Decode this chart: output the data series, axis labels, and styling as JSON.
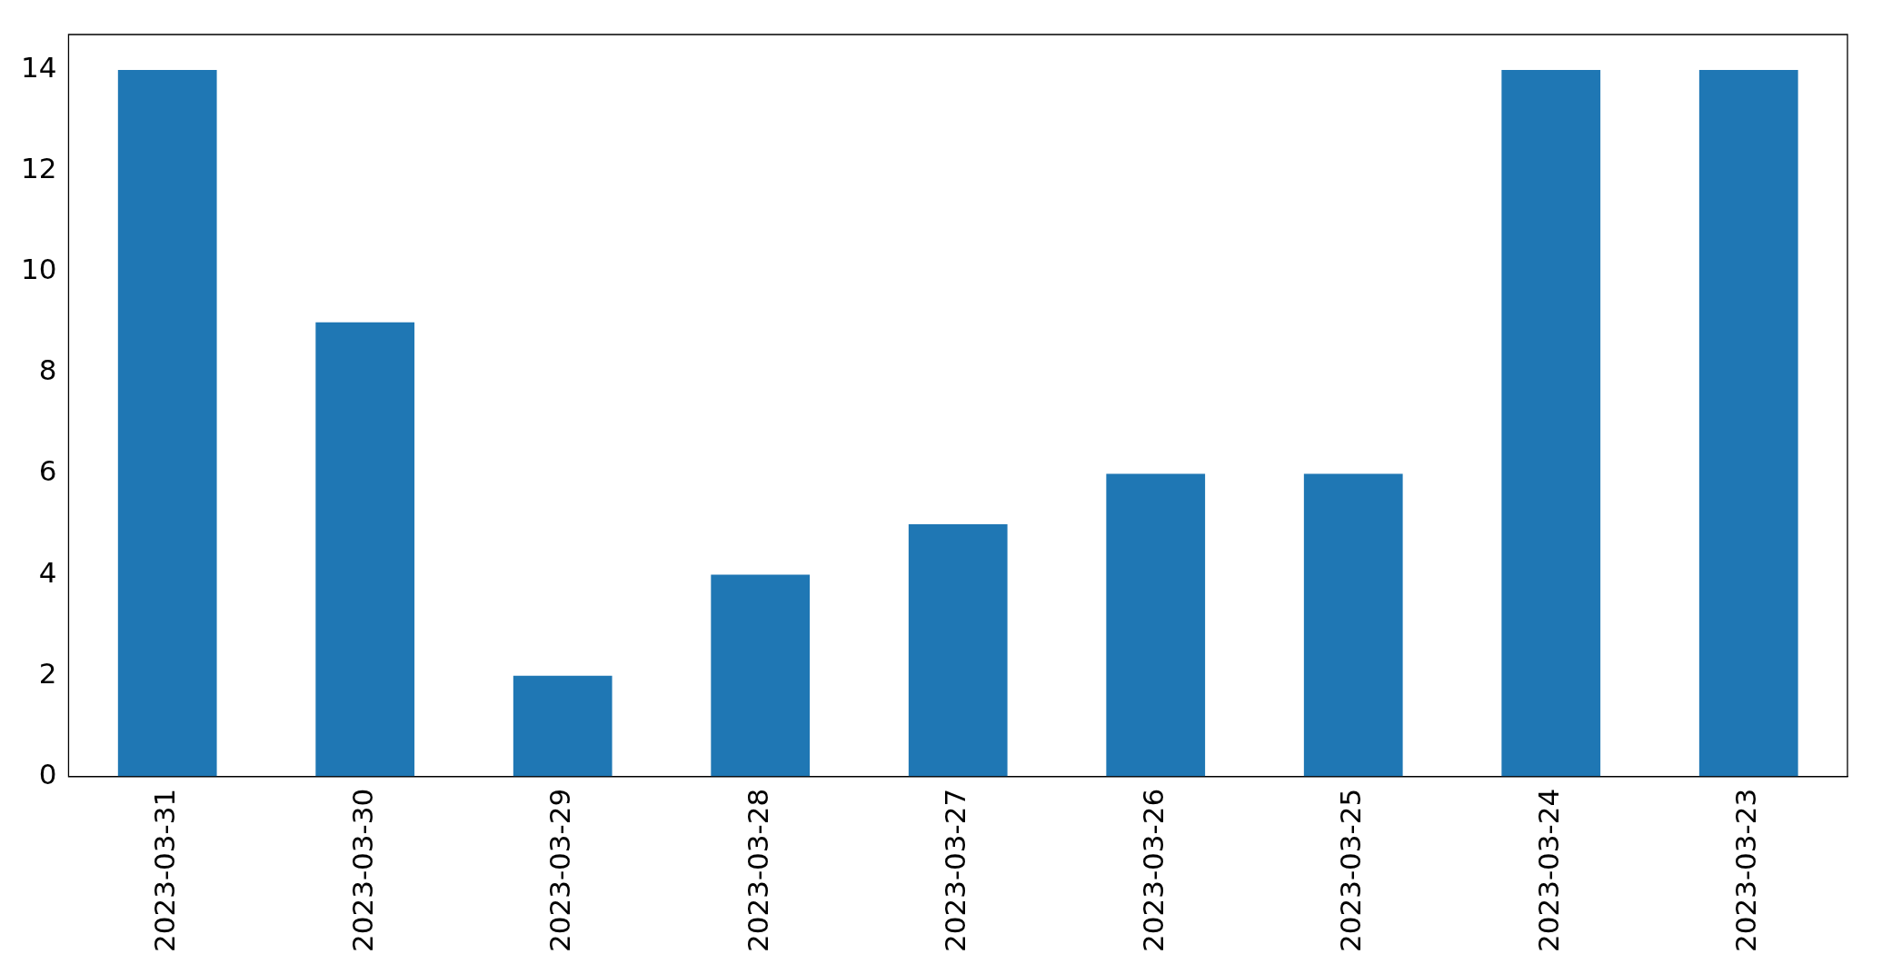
{
  "chart_data": {
    "type": "bar",
    "categories": [
      "2023-03-31",
      "2023-03-30",
      "2023-03-29",
      "2023-03-28",
      "2023-03-27",
      "2023-03-26",
      "2023-03-25",
      "2023-03-24",
      "2023-03-23"
    ],
    "values": [
      14,
      9,
      2,
      4,
      5,
      6,
      6,
      14,
      14
    ],
    "color": "#1f77b4",
    "ylim": [
      0,
      14.7
    ],
    "yticks": [
      0,
      2,
      4,
      6,
      8,
      10,
      12,
      14
    ],
    "grid": false,
    "legend": false
  }
}
